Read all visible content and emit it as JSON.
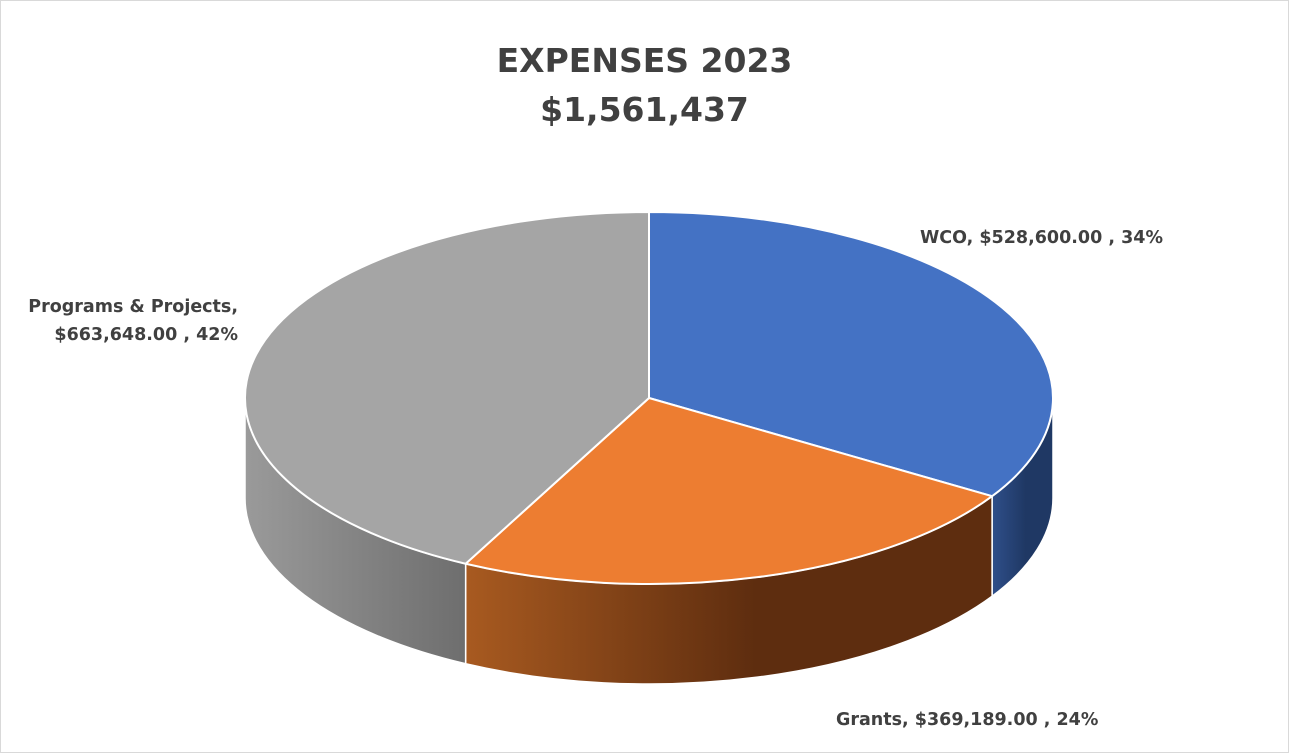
{
  "chart_data": {
    "type": "pie",
    "style": "3d",
    "title": "EXPENSES 2023",
    "subtitle": "$1,561,437",
    "categories": [
      "WCO",
      "Grants",
      "Programs & Projects"
    ],
    "values": [
      528600.0,
      369189.0,
      663648.0
    ],
    "percent_labels": [
      "34%",
      "24%",
      "42%"
    ],
    "value_labels": [
      "$528,600.00",
      "$369,189.00",
      "$663,648.00"
    ],
    "data_labels": [
      [
        "WCO,  $528,600.00 , 34%"
      ],
      [
        "Grants,  $369,189.00 , 24%"
      ],
      [
        "Programs & Projects,",
        "$663,648.00 , 42%"
      ]
    ],
    "colors": [
      "#4472C4",
      "#ED7D31",
      "#A5A5A5"
    ],
    "side_colors": {
      "dark": [
        "#1F3864",
        "#5E2D0F",
        "#6E6E6E"
      ],
      "light": [
        "#2F4F8A",
        "#A85A20",
        "#9A9A9A"
      ]
    },
    "legend": "none",
    "grid": false
  }
}
